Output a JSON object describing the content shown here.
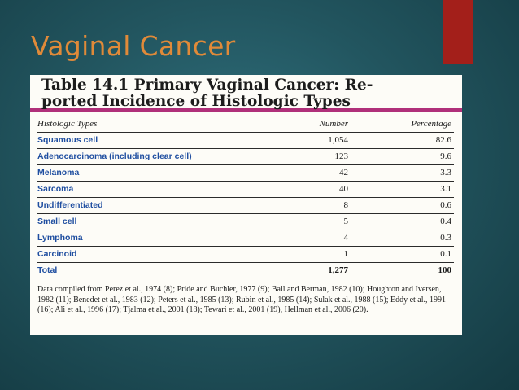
{
  "slide": {
    "title": "Vaginal Cancer"
  },
  "table": {
    "caption_lines": [
      "Table 14.1 Primary Vaginal Cancer: Re-",
      "ported Incidence of Histologic Types"
    ],
    "headers": {
      "type": "Histologic Types",
      "number": "Number",
      "percentage": "Percentage"
    },
    "rows": [
      {
        "type": "Squamous cell",
        "number": "1,054",
        "percentage": "82.6"
      },
      {
        "type": "Adenocarcinoma (including clear cell)",
        "number": "123",
        "percentage": "9.6"
      },
      {
        "type": "Melanoma",
        "number": "42",
        "percentage": "3.3"
      },
      {
        "type": "Sarcoma",
        "number": "40",
        "percentage": "3.1"
      },
      {
        "type": "Undifferentiated",
        "number": "8",
        "percentage": "0.6"
      },
      {
        "type": "Small cell",
        "number": "5",
        "percentage": "0.4"
      },
      {
        "type": "Lymphoma",
        "number": "4",
        "percentage": "0.3"
      },
      {
        "type": "Carcinoid",
        "number": "1",
        "percentage": "0.1"
      }
    ],
    "total": {
      "type": "Total",
      "number": "1,277",
      "percentage": "100"
    },
    "footnote": "Data compiled from Perez et al., 1974 (8); Pride and Buchler, 1977 (9); Ball and Berman, 1982 (10); Houghton and Iversen, 1982 (11); Benedet et al., 1983 (12); Peters et al., 1985 (13); Rubin et al., 1985 (14); Sulak et al., 1988 (15); Eddy et al., 1991 (16); Ali et al., 1996 (17); Tjalma et al., 2001 (18); Tewari et al., 2001 (19), Hellman et al., 2006 (20)."
  },
  "colors": {
    "accent_bar": "#a31f1a",
    "title": "#e08a39",
    "caption_rule": "#b0307a",
    "row_label": "#1f4ea0"
  }
}
